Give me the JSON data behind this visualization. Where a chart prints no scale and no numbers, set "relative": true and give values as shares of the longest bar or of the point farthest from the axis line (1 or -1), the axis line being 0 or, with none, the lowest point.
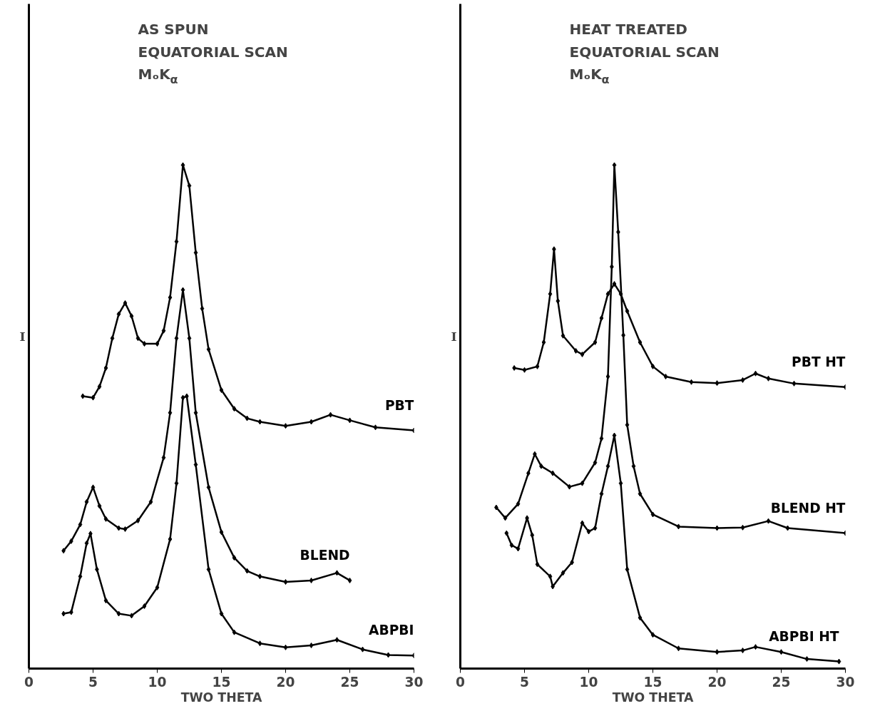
{
  "chart_data": [
    {
      "type": "line",
      "title": "AS SPUN\nEQUATORIAL SCAN\nMₒK$_{α}$",
      "xlabel": "TWO THETA",
      "ylabel": "I",
      "relative": true,
      "xlim": [
        0,
        30
      ],
      "xticks": [
        0,
        5,
        10,
        15,
        20,
        25,
        30
      ],
      "tick_labels": "x",
      "grid": false,
      "marker": "diamond",
      "line_style": "solid",
      "series": [
        {
          "name": "PBT",
          "color": "#000000",
          "x": [
            4.2,
            5,
            5.5,
            6,
            6.5,
            7,
            7.5,
            8,
            8.5,
            9,
            10,
            10.5,
            11,
            11.5,
            12,
            12.5,
            13,
            13.5,
            14,
            15,
            16,
            17,
            18,
            20,
            22,
            23.5,
            25,
            27,
            30
          ],
          "values": [
            0.541,
            0.538,
            0.56,
            0.597,
            0.656,
            0.704,
            0.726,
            0.7,
            0.656,
            0.645,
            0.645,
            0.671,
            0.737,
            0.848,
            1.0,
            0.959,
            0.826,
            0.715,
            0.634,
            0.553,
            0.516,
            0.497,
            0.49,
            0.482,
            0.49,
            0.504,
            0.493,
            0.479,
            0.473
          ]
        },
        {
          "name": "BLEND",
          "color": "#000000",
          "x": [
            2.7,
            3.3,
            4,
            4.5,
            5,
            5.5,
            6,
            7,
            7.5,
            8.5,
            9.5,
            10.5,
            11,
            11.5,
            12,
            12.5,
            13,
            14,
            15,
            16,
            17,
            18,
            20,
            22,
            24,
            25
          ],
          "values": [
            0.234,
            0.253,
            0.286,
            0.331,
            0.36,
            0.323,
            0.297,
            0.279,
            0.277,
            0.294,
            0.331,
            0.419,
            0.508,
            0.656,
            0.752,
            0.656,
            0.508,
            0.36,
            0.271,
            0.22,
            0.194,
            0.183,
            0.172,
            0.175,
            0.19,
            0.175
          ]
        },
        {
          "name": "ABPBI",
          "color": "#000000",
          "x": [
            2.7,
            3.3,
            4,
            4.5,
            4.8,
            5.3,
            6,
            7,
            8,
            9,
            10,
            11,
            11.5,
            12,
            12.3,
            13,
            14,
            15,
            16,
            18,
            20,
            22,
            24,
            26,
            28,
            30
          ],
          "values": [
            0.109,
            0.112,
            0.183,
            0.249,
            0.268,
            0.197,
            0.135,
            0.109,
            0.105,
            0.124,
            0.161,
            0.257,
            0.368,
            0.538,
            0.541,
            0.405,
            0.197,
            0.109,
            0.072,
            0.05,
            0.042,
            0.046,
            0.057,
            0.038,
            0.027,
            0.026
          ]
        }
      ]
    },
    {
      "type": "line",
      "title": "HEAT TREATED\nEQUATORIAL SCAN\nMₒK$_{α}$",
      "xlabel": "TWO THETA",
      "ylabel": "I",
      "relative": true,
      "xlim": [
        0,
        30
      ],
      "xticks": [
        0,
        5,
        10,
        15,
        20,
        25,
        30
      ],
      "tick_labels": "x",
      "grid": false,
      "marker": "diamond",
      "line_style": "solid",
      "series": [
        {
          "name": "PBT HT",
          "color": "#000000",
          "x": [
            4.2,
            5,
            6,
            6.5,
            7,
            7.3,
            7.6,
            8,
            9,
            9.5,
            10.5,
            11,
            11.5,
            12,
            12.5,
            13,
            14,
            15,
            16,
            18,
            20,
            22,
            23,
            24,
            26,
            30
          ],
          "values": [
            0.597,
            0.593,
            0.6,
            0.648,
            0.744,
            0.833,
            0.73,
            0.661,
            0.631,
            0.624,
            0.648,
            0.696,
            0.744,
            0.764,
            0.744,
            0.71,
            0.648,
            0.6,
            0.58,
            0.569,
            0.567,
            0.573,
            0.586,
            0.576,
            0.566,
            0.559
          ]
        },
        {
          "name": "BLEND HT",
          "color": "#000000",
          "x": [
            2.8,
            3.5,
            4.5,
            5.3,
            5.8,
            6.3,
            7.2,
            8.5,
            9.5,
            10.5,
            11,
            11.5,
            11.8,
            12,
            12.3,
            12.7,
            13,
            13.5,
            14,
            15,
            17,
            20,
            22,
            24,
            25.5,
            30
          ],
          "values": [
            0.32,
            0.299,
            0.327,
            0.388,
            0.426,
            0.402,
            0.388,
            0.361,
            0.368,
            0.409,
            0.457,
            0.58,
            0.798,
            1.0,
            0.867,
            0.662,
            0.484,
            0.402,
            0.347,
            0.306,
            0.282,
            0.279,
            0.28,
            0.293,
            0.279,
            0.269
          ]
        },
        {
          "name": "ABPBI HT",
          "color": "#000000",
          "x": [
            3.6,
            4,
            4.5,
            5.2,
            5.6,
            6,
            7,
            7.2,
            8,
            8.7,
            9.5,
            10,
            10.5,
            11,
            11.5,
            12,
            12.5,
            13,
            14,
            15,
            17,
            20,
            22,
            23,
            25,
            27,
            29.5
          ],
          "values": [
            0.269,
            0.245,
            0.238,
            0.299,
            0.265,
            0.207,
            0.183,
            0.163,
            0.19,
            0.211,
            0.289,
            0.272,
            0.279,
            0.347,
            0.402,
            0.463,
            0.368,
            0.197,
            0.101,
            0.067,
            0.04,
            0.033,
            0.036,
            0.043,
            0.033,
            0.019,
            0.014
          ]
        }
      ]
    }
  ]
}
